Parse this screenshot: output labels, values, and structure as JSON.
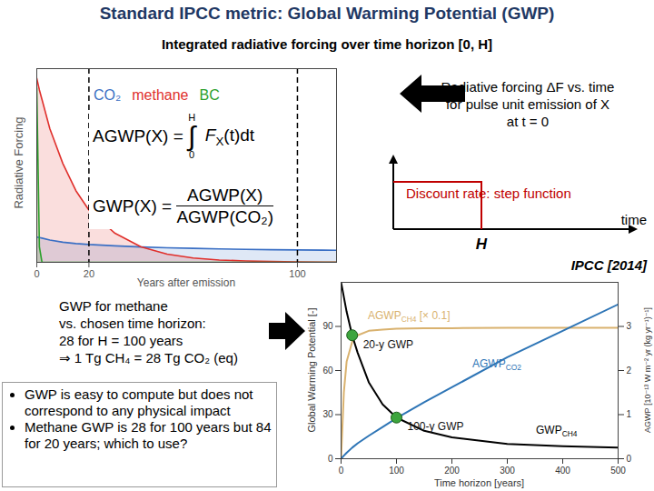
{
  "slide": {
    "title": "Standard IPCC metric: Global Warming Potential (GWP)",
    "subtitle": "Integrated radiative forcing over time horizon [0, H]",
    "forcing_note": [
      "Radiative forcing ΔF vs. time",
      "for pulse unit emission of X",
      "at t = 0"
    ],
    "discount_note": "Discount rate: step function",
    "step_axis": {
      "x_label": "time",
      "mark": "H"
    },
    "source": "IPCC [2014]",
    "methane_note": [
      "GWP for methane",
      "vs. chosen time horizon:",
      "28 for H = 100 years",
      "⇒ 1 Tg CH₄ = 28 Tg CO₂ (eq)"
    ],
    "bullets": [
      "GWP is easy to compute but does not correspond to any physical impact",
      "Methane GWP is 28 for 100 years but 84 for 20 years; which to use?"
    ]
  },
  "chart_data": [
    {
      "type": "line",
      "x_label": "Years after emission",
      "y_label": "Radiative Forcing",
      "x": [
        0,
        1,
        2,
        5,
        10,
        15,
        20,
        30,
        40,
        50,
        60,
        70,
        80,
        90,
        100,
        110,
        115
      ],
      "series": [
        {
          "name": "CO₂",
          "color": "#3a6fc4",
          "values": [
            0.13,
            0.128,
            0.125,
            0.115,
            0.104,
            0.097,
            0.092,
            0.085,
            0.079,
            0.075,
            0.072,
            0.069,
            0.067,
            0.065,
            0.064,
            0.063,
            0.062
          ]
        },
        {
          "name": "methane",
          "color": "#e0302c",
          "values": [
            0.95,
            0.89,
            0.84,
            0.69,
            0.51,
            0.37,
            0.27,
            0.15,
            0.08,
            0.042,
            0.022,
            0.012,
            0.007,
            0.004,
            0.002,
            0.001,
            0.001
          ]
        },
        {
          "name": "BC",
          "color": "#2ca02c",
          "values": [
            0.9,
            0.08,
            0,
            0,
            0,
            0,
            0,
            0,
            0,
            0,
            0,
            0,
            0,
            0,
            0,
            0,
            0
          ]
        }
      ],
      "xlim": [
        0,
        115
      ],
      "xticks": [
        0,
        20,
        100
      ],
      "ylim": [
        0,
        1
      ],
      "yticks": [],
      "tick_labels": "x",
      "legend": "top-left",
      "time_horizons": [
        20,
        100
      ],
      "formulas": {
        "agwp": {
          "lhs": "AGWP(X) =",
          "symbol": "∫",
          "upper": "H",
          "lower": "0",
          "integrand": "F",
          "subscript": "X",
          "rest": "(t)dt"
        },
        "gwp": {
          "lhs": "GWP(X) =",
          "numerator": "AGWP(X)",
          "denominator": "AGWP(CO₂)"
        }
      }
    },
    {
      "type": "line",
      "x_label": "Time horizon [years]",
      "y_label": "Global Warming Potential [-]",
      "y2_label": "AGWP [10⁻¹³ W m⁻² yr (kg yr⁻¹)⁻¹]",
      "x": [
        0,
        5,
        10,
        20,
        30,
        50,
        75,
        100,
        150,
        200,
        300,
        400,
        500
      ],
      "series": [
        {
          "name": "AGWPCH4 [× 0.1]",
          "color": "#d9b26f",
          "axis": "y2",
          "values": [
            0,
            1.5,
            2.2,
            2.65,
            2.8,
            2.9,
            2.93,
            2.95,
            2.96,
            2.96,
            2.97,
            2.97,
            2.97
          ]
        },
        {
          "name": "AGWPCO2",
          "color": "#2e75b6",
          "axis": "y2",
          "values": [
            0,
            0.07,
            0.135,
            0.25,
            0.35,
            0.52,
            0.72,
            0.92,
            1.28,
            1.62,
            2.3,
            2.9,
            3.5
          ]
        },
        {
          "name": "GWPCH4",
          "color": "#000000",
          "values": [
            120,
            110,
            100,
            84,
            72,
            52,
            37,
            28,
            19,
            14.5,
            10,
            8.5,
            7.6
          ]
        }
      ],
      "points": [
        {
          "label": "20-y GWP",
          "x": 20,
          "y": 84
        },
        {
          "label": "100-y GWP",
          "x": 100,
          "y": 28
        }
      ],
      "xlim": [
        0,
        500
      ],
      "xticks": [
        0,
        100,
        200,
        300,
        400,
        500
      ],
      "ylim": [
        0,
        120
      ],
      "yticks": [
        0,
        30,
        60,
        90
      ],
      "y2lim": [
        0,
        4
      ],
      "y2ticks": [
        0,
        1,
        2,
        3
      ]
    }
  ]
}
